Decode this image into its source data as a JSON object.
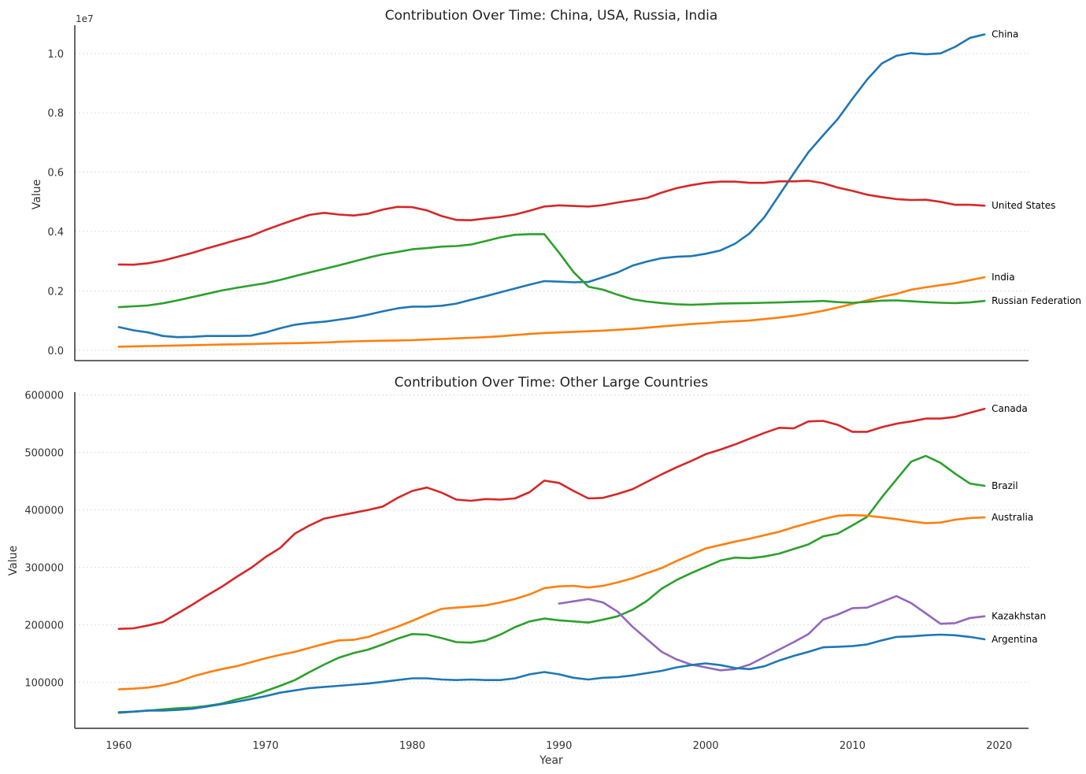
{
  "figure": {
    "background": "#ffffff",
    "axis_color": "#333333",
    "grid_color": "#dddddd",
    "text_color": "#333333"
  },
  "chart_data": [
    {
      "type": "line",
      "title": "Contribution Over Time: China, USA, Russia, India",
      "xlabel": "",
      "ylabel": "Value",
      "offset_label": "1e7",
      "ytick_scale": 10000000,
      "xlim": [
        1957,
        2022
      ],
      "ylim": [
        -350000,
        10950000
      ],
      "xticks": [
        1960,
        1970,
        1980,
        1990,
        2000,
        2010,
        2020
      ],
      "show_xtick_labels": false,
      "yticks": [
        0,
        2000000,
        4000000,
        6000000,
        8000000,
        10000000
      ],
      "ytick_labels": [
        "0.0",
        "0.2",
        "0.4",
        "0.6",
        "0.8",
        "1.0"
      ],
      "grid": "y-dotted",
      "legend": "direct labels at line ends",
      "series": [
        {
          "name": "China",
          "color": "#1f77b4",
          "x_start": 1960,
          "values": [
            780000,
            670000,
            600000,
            480000,
            440000,
            450000,
            480000,
            480000,
            480000,
            490000,
            600000,
            740000,
            860000,
            920000,
            960000,
            1030000,
            1100000,
            1200000,
            1310000,
            1410000,
            1470000,
            1470000,
            1500000,
            1570000,
            1700000,
            1820000,
            1950000,
            2080000,
            2210000,
            2330000,
            2310000,
            2290000,
            2300000,
            2460000,
            2620000,
            2850000,
            2990000,
            3100000,
            3150000,
            3170000,
            3250000,
            3360000,
            3590000,
            3940000,
            4480000,
            5220000,
            5960000,
            6670000,
            7240000,
            7790000,
            8470000,
            9120000,
            9660000,
            9920000,
            10010000,
            9970000,
            10000000,
            10220000,
            10520000,
            10640000
          ]
        },
        {
          "name": "United States",
          "color": "#d62728",
          "x_start": 1960,
          "values": [
            2890000,
            2880000,
            2930000,
            3020000,
            3150000,
            3280000,
            3430000,
            3570000,
            3710000,
            3850000,
            4050000,
            4230000,
            4400000,
            4560000,
            4630000,
            4570000,
            4540000,
            4600000,
            4740000,
            4830000,
            4820000,
            4710000,
            4520000,
            4390000,
            4380000,
            4440000,
            4490000,
            4570000,
            4700000,
            4840000,
            4880000,
            4860000,
            4840000,
            4890000,
            4980000,
            5050000,
            5130000,
            5310000,
            5460000,
            5560000,
            5640000,
            5680000,
            5680000,
            5640000,
            5640000,
            5690000,
            5690000,
            5710000,
            5630000,
            5480000,
            5370000,
            5240000,
            5160000,
            5090000,
            5060000,
            5070000,
            5000000,
            4900000,
            4900000,
            4870000
          ]
        },
        {
          "name": "India",
          "color": "#ff7f0e",
          "x_start": 1960,
          "values": [
            120000,
            130000,
            140000,
            150000,
            160000,
            170000,
            180000,
            190000,
            200000,
            210000,
            220000,
            230000,
            240000,
            250000,
            260000,
            280000,
            300000,
            310000,
            320000,
            330000,
            340000,
            360000,
            380000,
            400000,
            420000,
            440000,
            470000,
            510000,
            550000,
            580000,
            600000,
            620000,
            640000,
            660000,
            690000,
            720000,
            760000,
            800000,
            840000,
            880000,
            910000,
            950000,
            980000,
            1000000,
            1050000,
            1100000,
            1160000,
            1240000,
            1330000,
            1440000,
            1560000,
            1680000,
            1800000,
            1900000,
            2040000,
            2120000,
            2190000,
            2260000,
            2360000,
            2460000
          ]
        },
        {
          "name": "Russian Federation",
          "color": "#2ca02c",
          "x_start": 1960,
          "values": [
            1450000,
            1480000,
            1510000,
            1580000,
            1680000,
            1790000,
            1900000,
            2010000,
            2100000,
            2180000,
            2260000,
            2370000,
            2500000,
            2620000,
            2740000,
            2860000,
            2990000,
            3120000,
            3230000,
            3310000,
            3400000,
            3440000,
            3490000,
            3510000,
            3560000,
            3680000,
            3800000,
            3890000,
            3910000,
            3910000,
            3290000,
            2630000,
            2140000,
            2040000,
            1870000,
            1720000,
            1640000,
            1590000,
            1550000,
            1530000,
            1550000,
            1570000,
            1580000,
            1590000,
            1600000,
            1610000,
            1630000,
            1640000,
            1660000,
            1620000,
            1600000,
            1630000,
            1670000,
            1680000,
            1650000,
            1620000,
            1600000,
            1590000,
            1610000,
            1660000
          ]
        }
      ]
    },
    {
      "type": "line",
      "title": "Contribution Over Time: Other Large Countries",
      "xlabel": "Year",
      "ylabel": "Value",
      "xlim": [
        1957,
        2022
      ],
      "ylim": [
        20000,
        605000
      ],
      "xticks": [
        1960,
        1970,
        1980,
        1990,
        2000,
        2010,
        2020
      ],
      "xtick_labels": [
        "1960",
        "1970",
        "1980",
        "1990",
        "2000",
        "2010",
        "2020"
      ],
      "yticks": [
        100000,
        200000,
        300000,
        400000,
        500000,
        600000
      ],
      "ytick_labels": [
        "100000",
        "200000",
        "300000",
        "400000",
        "500000",
        "600000"
      ],
      "grid": "y-dotted",
      "legend": "direct labels at line ends",
      "series": [
        {
          "name": "Canada",
          "color": "#d62728",
          "x_start": 1960,
          "values": [
            193000,
            194000,
            199000,
            205000,
            220000,
            235000,
            251000,
            266000,
            283000,
            299000,
            318000,
            334000,
            359000,
            373000,
            385000,
            390000,
            395000,
            400000,
            406000,
            421000,
            433000,
            439000,
            430000,
            418000,
            416000,
            419000,
            418000,
            420000,
            431000,
            451000,
            447000,
            433000,
            420000,
            421000,
            428000,
            436000,
            449000,
            462000,
            474000,
            485000,
            497000,
            505000,
            514000,
            524000,
            534000,
            543000,
            542000,
            554000,
            555000,
            548000,
            536000,
            536000,
            544000,
            550000,
            554000,
            559000,
            559000,
            562000,
            569000,
            576000
          ]
        },
        {
          "name": "Brazil",
          "color": "#2ca02c",
          "x_start": 1960,
          "values": [
            47000,
            49000,
            51000,
            53000,
            55000,
            56000,
            59000,
            63000,
            70000,
            76000,
            85000,
            94000,
            104000,
            118000,
            131000,
            143000,
            151000,
            157000,
            166000,
            176000,
            184000,
            183000,
            177000,
            170000,
            169000,
            173000,
            183000,
            196000,
            206000,
            211000,
            208000,
            206000,
            204000,
            209000,
            215000,
            226000,
            242000,
            263000,
            278000,
            290000,
            301000,
            312000,
            317000,
            316000,
            319000,
            324000,
            332000,
            340000,
            354000,
            359000,
            373000,
            388000,
            422000,
            453000,
            484000,
            494000,
            482000,
            463000,
            446000,
            442000
          ]
        },
        {
          "name": "Australia",
          "color": "#ff7f0e",
          "x_start": 1960,
          "values": [
            88000,
            89000,
            91000,
            95000,
            101000,
            110000,
            117000,
            123000,
            128000,
            135000,
            142000,
            148000,
            153000,
            160000,
            167000,
            173000,
            174000,
            179000,
            188000,
            197000,
            207000,
            218000,
            228000,
            230000,
            232000,
            234000,
            239000,
            245000,
            253000,
            264000,
            267000,
            268000,
            265000,
            268000,
            274000,
            281000,
            290000,
            299000,
            311000,
            322000,
            333000,
            339000,
            345000,
            350000,
            356000,
            362000,
            370000,
            377000,
            384000,
            390000,
            391000,
            390000,
            387000,
            384000,
            380000,
            377000,
            378000,
            383000,
            386000,
            387000
          ]
        },
        {
          "name": "Kazakhstan",
          "color": "#9467bd",
          "x_start": 1990,
          "values": [
            237000,
            241000,
            245000,
            239000,
            223000,
            197000,
            175000,
            153000,
            140000,
            131000,
            126000,
            121000,
            123000,
            131000,
            144000,
            157000,
            170000,
            184000,
            209000,
            218000,
            229000,
            230000,
            240000,
            250000,
            238000,
            220000,
            202000,
            203000,
            212000,
            215000
          ]
        },
        {
          "name": "Argentina",
          "color": "#1f77b4",
          "x_start": 1960,
          "values": [
            48000,
            49000,
            51000,
            51000,
            52000,
            54000,
            58000,
            62000,
            66000,
            71000,
            76000,
            82000,
            86000,
            90000,
            92000,
            94000,
            96000,
            98000,
            101000,
            104000,
            107000,
            107000,
            105000,
            104000,
            105000,
            104000,
            104000,
            107000,
            114000,
            118000,
            114000,
            108000,
            105000,
            108000,
            109000,
            112000,
            116000,
            120000,
            126000,
            130000,
            133000,
            130000,
            125000,
            123000,
            128000,
            138000,
            146000,
            153000,
            161000,
            162000,
            163000,
            166000,
            173000,
            179000,
            180000,
            182000,
            183000,
            182000,
            179000,
            175000
          ]
        }
      ]
    }
  ]
}
